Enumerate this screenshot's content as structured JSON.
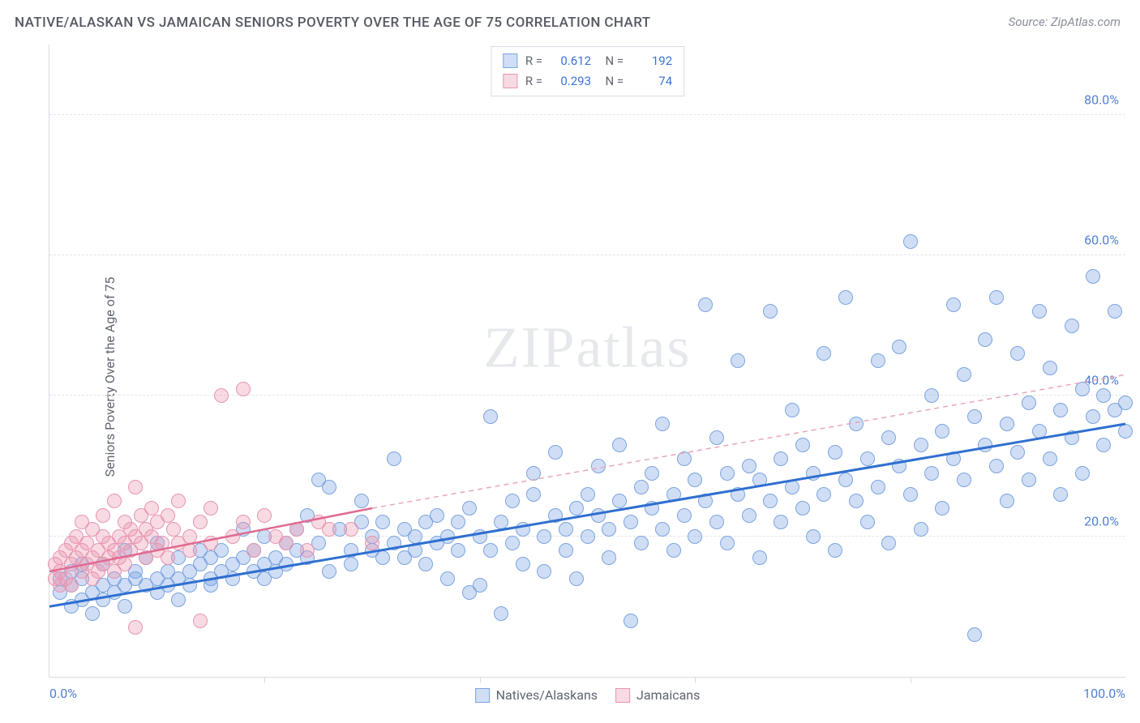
{
  "header": {
    "title": "NATIVE/ALASKAN VS JAMAICAN SENIORS POVERTY OVER THE AGE OF 75 CORRELATION CHART",
    "source_prefix": "Source: ",
    "source_name": "ZipAtlas.com"
  },
  "watermark": {
    "part1": "ZIP",
    "part2": "atlas"
  },
  "chart": {
    "type": "scatter",
    "ylabel": "Seniors Poverty Over the Age of 75",
    "xlim": [
      0,
      100
    ],
    "ylim": [
      0,
      90
    ],
    "xticks": [
      0,
      20,
      40,
      60,
      80,
      100
    ],
    "xticklabels": [
      "0.0%",
      "",
      "",
      "",
      "",
      "100.0%"
    ],
    "yticks": [
      20,
      40,
      60,
      80
    ],
    "yticklabels": [
      "20.0%",
      "40.0%",
      "60.0%",
      "80.0%"
    ],
    "background_color": "#ffffff",
    "grid_color": "#e3e6eb",
    "axis_color": "#d7dbe2",
    "tick_label_color": "#4f7fd6",
    "axis_label_color": "#5f6570",
    "marker_radius": 9,
    "series": [
      {
        "id": "natives",
        "label": "Natives/Alaskans",
        "fill": "rgba(120,160,225,0.35)",
        "stroke": "#7ba4e0",
        "trend": {
          "x1": 0,
          "y1": 10,
          "x2": 100,
          "y2": 36,
          "color": "#2f6fd0",
          "width": 3,
          "dash": "none"
        },
        "trend_ext": null,
        "R": "0.612",
        "N": "192",
        "points": [
          [
            1,
            12
          ],
          [
            1,
            14
          ],
          [
            2,
            10
          ],
          [
            2,
            15
          ],
          [
            2,
            13
          ],
          [
            3,
            11
          ],
          [
            3,
            16
          ],
          [
            3,
            14
          ],
          [
            4,
            12
          ],
          [
            4,
            9
          ],
          [
            5,
            13
          ],
          [
            5,
            16
          ],
          [
            5,
            11
          ],
          [
            6,
            14
          ],
          [
            6,
            12
          ],
          [
            7,
            18
          ],
          [
            7,
            13
          ],
          [
            7,
            10
          ],
          [
            8,
            15
          ],
          [
            8,
            14
          ],
          [
            9,
            13
          ],
          [
            9,
            17
          ],
          [
            10,
            14
          ],
          [
            10,
            12
          ],
          [
            10,
            19
          ],
          [
            11,
            13
          ],
          [
            11,
            15
          ],
          [
            12,
            14
          ],
          [
            12,
            17
          ],
          [
            12,
            11
          ],
          [
            13,
            15
          ],
          [
            13,
            13
          ],
          [
            14,
            16
          ],
          [
            14,
            18
          ],
          [
            15,
            13
          ],
          [
            15,
            17
          ],
          [
            15,
            14
          ],
          [
            16,
            18
          ],
          [
            16,
            15
          ],
          [
            17,
            16
          ],
          [
            17,
            14
          ],
          [
            18,
            17
          ],
          [
            18,
            21
          ],
          [
            19,
            15
          ],
          [
            19,
            18
          ],
          [
            20,
            16
          ],
          [
            20,
            14
          ],
          [
            20,
            20
          ],
          [
            21,
            17
          ],
          [
            21,
            15
          ],
          [
            22,
            19
          ],
          [
            22,
            16
          ],
          [
            23,
            18
          ],
          [
            23,
            21
          ],
          [
            24,
            17
          ],
          [
            24,
            23
          ],
          [
            25,
            28
          ],
          [
            25,
            19
          ],
          [
            26,
            15
          ],
          [
            26,
            27
          ],
          [
            27,
            21
          ],
          [
            28,
            18
          ],
          [
            28,
            16
          ],
          [
            29,
            22
          ],
          [
            29,
            25
          ],
          [
            30,
            18
          ],
          [
            30,
            20
          ],
          [
            31,
            17
          ],
          [
            31,
            22
          ],
          [
            32,
            31
          ],
          [
            32,
            19
          ],
          [
            33,
            21
          ],
          [
            33,
            17
          ],
          [
            34,
            20
          ],
          [
            34,
            18
          ],
          [
            35,
            22
          ],
          [
            35,
            16
          ],
          [
            36,
            23
          ],
          [
            36,
            19
          ],
          [
            37,
            20
          ],
          [
            37,
            14
          ],
          [
            38,
            22
          ],
          [
            38,
            18
          ],
          [
            39,
            24
          ],
          [
            39,
            12
          ],
          [
            40,
            20
          ],
          [
            40,
            13
          ],
          [
            41,
            37
          ],
          [
            41,
            18
          ],
          [
            42,
            22
          ],
          [
            42,
            9
          ],
          [
            43,
            25
          ],
          [
            43,
            19
          ],
          [
            44,
            21
          ],
          [
            44,
            16
          ],
          [
            45,
            26
          ],
          [
            45,
            29
          ],
          [
            46,
            20
          ],
          [
            46,
            15
          ],
          [
            47,
            23
          ],
          [
            47,
            32
          ],
          [
            48,
            21
          ],
          [
            48,
            18
          ],
          [
            49,
            24
          ],
          [
            49,
            14
          ],
          [
            50,
            26
          ],
          [
            50,
            20
          ],
          [
            51,
            23
          ],
          [
            51,
            30
          ],
          [
            52,
            21
          ],
          [
            52,
            17
          ],
          [
            53,
            25
          ],
          [
            53,
            33
          ],
          [
            54,
            22
          ],
          [
            54,
            8
          ],
          [
            55,
            27
          ],
          [
            55,
            19
          ],
          [
            56,
            24
          ],
          [
            56,
            29
          ],
          [
            57,
            21
          ],
          [
            57,
            36
          ],
          [
            58,
            26
          ],
          [
            58,
            18
          ],
          [
            59,
            23
          ],
          [
            59,
            31
          ],
          [
            60,
            28
          ],
          [
            60,
            20
          ],
          [
            61,
            25
          ],
          [
            61,
            53
          ],
          [
            62,
            22
          ],
          [
            62,
            34
          ],
          [
            63,
            29
          ],
          [
            63,
            19
          ],
          [
            64,
            26
          ],
          [
            64,
            45
          ],
          [
            65,
            23
          ],
          [
            65,
            30
          ],
          [
            66,
            28
          ],
          [
            66,
            17
          ],
          [
            67,
            25
          ],
          [
            67,
            52
          ],
          [
            68,
            31
          ],
          [
            68,
            22
          ],
          [
            69,
            27
          ],
          [
            69,
            38
          ],
          [
            70,
            24
          ],
          [
            70,
            33
          ],
          [
            71,
            29
          ],
          [
            71,
            20
          ],
          [
            72,
            26
          ],
          [
            72,
            46
          ],
          [
            73,
            32
          ],
          [
            73,
            18
          ],
          [
            74,
            28
          ],
          [
            74,
            54
          ],
          [
            75,
            25
          ],
          [
            75,
            36
          ],
          [
            76,
            31
          ],
          [
            76,
            22
          ],
          [
            77,
            27
          ],
          [
            77,
            45
          ],
          [
            78,
            34
          ],
          [
            78,
            19
          ],
          [
            79,
            30
          ],
          [
            79,
            47
          ],
          [
            80,
            26
          ],
          [
            80,
            62
          ],
          [
            81,
            33
          ],
          [
            81,
            21
          ],
          [
            82,
            29
          ],
          [
            82,
            40
          ],
          [
            83,
            35
          ],
          [
            83,
            24
          ],
          [
            84,
            31
          ],
          [
            84,
            53
          ],
          [
            85,
            28
          ],
          [
            85,
            43
          ],
          [
            86,
            37
          ],
          [
            86,
            6
          ],
          [
            87,
            33
          ],
          [
            87,
            48
          ],
          [
            88,
            30
          ],
          [
            88,
            54
          ],
          [
            89,
            36
          ],
          [
            89,
            25
          ],
          [
            90,
            32
          ],
          [
            90,
            46
          ],
          [
            91,
            39
          ],
          [
            91,
            28
          ],
          [
            92,
            35
          ],
          [
            92,
            52
          ],
          [
            93,
            31
          ],
          [
            93,
            44
          ],
          [
            94,
            38
          ],
          [
            94,
            26
          ],
          [
            95,
            34
          ],
          [
            95,
            50
          ],
          [
            96,
            41
          ],
          [
            96,
            29
          ],
          [
            97,
            37
          ],
          [
            97,
            57
          ],
          [
            98,
            33
          ],
          [
            98,
            40
          ],
          [
            99,
            38
          ],
          [
            99,
            52
          ],
          [
            100,
            35
          ],
          [
            100,
            39
          ]
        ]
      },
      {
        "id": "jamaicans",
        "label": "Jamaicans",
        "fill": "rgba(235,150,175,0.35)",
        "stroke": "#e795b0",
        "trend": {
          "x1": 0,
          "y1": 15,
          "x2": 30,
          "y2": 24,
          "color": "#e06a91",
          "width": 2.5,
          "dash": "none"
        },
        "trend_ext": {
          "x1": 30,
          "y1": 24,
          "x2": 100,
          "y2": 43,
          "color": "#e9a6bc",
          "width": 1.5,
          "dash": "6 5"
        },
        "R": "0.293",
        "N": "74",
        "points": [
          [
            0.5,
            14
          ],
          [
            0.5,
            16
          ],
          [
            1,
            13
          ],
          [
            1,
            17
          ],
          [
            1,
            15
          ],
          [
            1.5,
            18
          ],
          [
            1.5,
            14
          ],
          [
            2,
            16
          ],
          [
            2,
            19
          ],
          [
            2,
            13
          ],
          [
            2.5,
            17
          ],
          [
            2.5,
            20
          ],
          [
            3,
            15
          ],
          [
            3,
            18
          ],
          [
            3,
            22
          ],
          [
            3.5,
            16
          ],
          [
            3.5,
            19
          ],
          [
            4,
            17
          ],
          [
            4,
            14
          ],
          [
            4,
            21
          ],
          [
            4.5,
            18
          ],
          [
            4.5,
            15
          ],
          [
            5,
            20
          ],
          [
            5,
            16
          ],
          [
            5,
            23
          ],
          [
            5.5,
            17
          ],
          [
            5.5,
            19
          ],
          [
            6,
            18
          ],
          [
            6,
            15
          ],
          [
            6,
            25
          ],
          [
            6.5,
            20
          ],
          [
            6.5,
            17
          ],
          [
            7,
            19
          ],
          [
            7,
            22
          ],
          [
            7,
            16
          ],
          [
            7.5,
            21
          ],
          [
            7.5,
            18
          ],
          [
            8,
            20
          ],
          [
            8,
            27
          ],
          [
            8,
            7
          ],
          [
            8.5,
            19
          ],
          [
            8.5,
            23
          ],
          [
            9,
            21
          ],
          [
            9,
            17
          ],
          [
            9.5,
            20
          ],
          [
            9.5,
            24
          ],
          [
            10,
            18
          ],
          [
            10,
            22
          ],
          [
            10.5,
            19
          ],
          [
            11,
            23
          ],
          [
            11,
            17
          ],
          [
            11.5,
            21
          ],
          [
            12,
            19
          ],
          [
            12,
            25
          ],
          [
            13,
            20
          ],
          [
            13,
            18
          ],
          [
            14,
            22
          ],
          [
            14,
            8
          ],
          [
            15,
            19
          ],
          [
            15,
            24
          ],
          [
            16,
            40
          ],
          [
            17,
            20
          ],
          [
            18,
            22
          ],
          [
            18,
            41
          ],
          [
            19,
            18
          ],
          [
            20,
            23
          ],
          [
            21,
            20
          ],
          [
            22,
            19
          ],
          [
            23,
            21
          ],
          [
            24,
            18
          ],
          [
            25,
            22
          ],
          [
            26,
            21
          ],
          [
            28,
            21
          ],
          [
            30,
            19
          ]
        ]
      }
    ]
  }
}
